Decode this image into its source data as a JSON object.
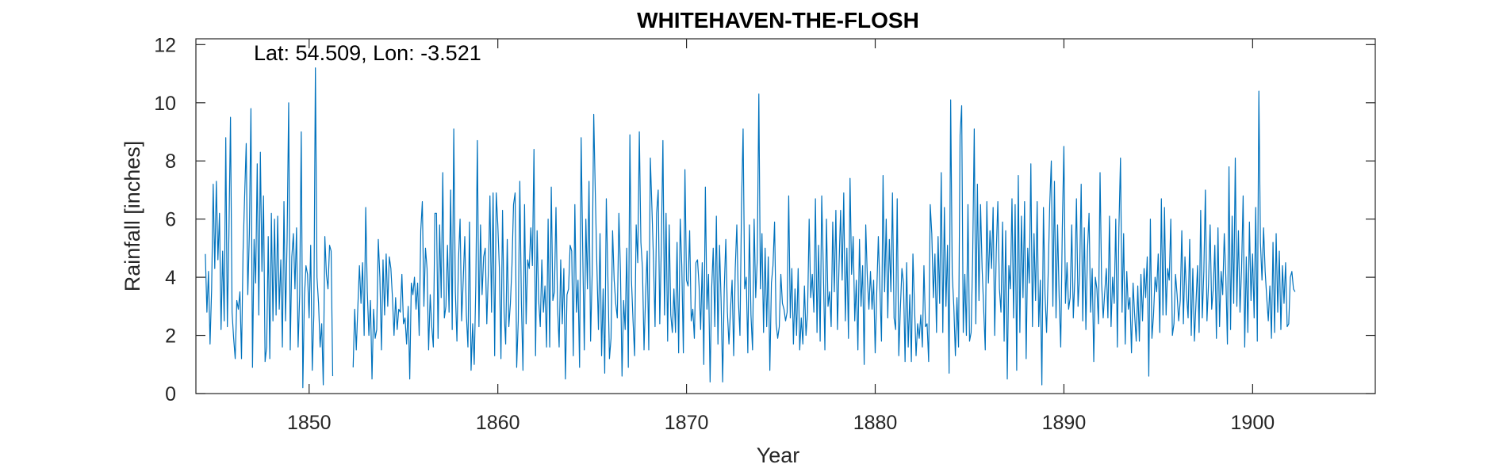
{
  "chart_data": {
    "type": "line",
    "title": "WHITEHAVEN-THE-FLOSH",
    "xlabel": "Year",
    "ylabel": "Rainfall [inches]",
    "annotation": "Lat: 54.509, Lon: -3.521",
    "xlim": [
      1844,
      1906.5
    ],
    "ylim": [
      0,
      12.2
    ],
    "xticks": [
      1850,
      1860,
      1870,
      1880,
      1890,
      1900
    ],
    "yticks": [
      0,
      2,
      4,
      6,
      8,
      10,
      12
    ],
    "grid": false,
    "line_color": "#0072BD",
    "series": [
      {
        "x_start": 1844.5,
        "step_years": 0.08333,
        "values": [
          4.8,
          2.8,
          4.2,
          1.7,
          3.6,
          7.2,
          4.3,
          7.3,
          4.6,
          6.2,
          2.2,
          4.9,
          2.5,
          8.8,
          2.3,
          5.5,
          9.5,
          2.8,
          1.9,
          1.2,
          3.2,
          2.9,
          3.5,
          1.2,
          4.9,
          6.8,
          8.6,
          3.4,
          5.5,
          9.8,
          0.9,
          5.3,
          3.8,
          7.9,
          2.7,
          8.3,
          4.2,
          6.8,
          1.1,
          1.6,
          5.4,
          1.2,
          6.2,
          2.5,
          6.0,
          2.7,
          6.1,
          2.9,
          4.6,
          1.6,
          6.6,
          2.5,
          5.3,
          10.0,
          1.5,
          4.7,
          5.5,
          3.6,
          5.7,
          1.6,
          3.4,
          9.0,
          0.2,
          3.3,
          4.4,
          4.1,
          2.6,
          5.1,
          0.8,
          2.7,
          11.2,
          4.0,
          3.1,
          1.6,
          2.4,
          0.3,
          5.4,
          4.1,
          3.6,
          5.1,
          4.9,
          0.6,
          null,
          null,
          null,
          null,
          null,
          null,
          null,
          null,
          null,
          null,
          null,
          null,
          0.9,
          2.9,
          1.5,
          3.0,
          4.4,
          3.1,
          4.5,
          2.0,
          6.4,
          3.5,
          2.0,
          3.2,
          0.5,
          2.9,
          1.9,
          2.2,
          5.3,
          4.0,
          1.5,
          4.6,
          2.7,
          4.8,
          3.0,
          4.7,
          4.3,
          3.3,
          2.0,
          3.3,
          2.2,
          2.9,
          2.8,
          4.1,
          2.4,
          2.6,
          1.7,
          3.0,
          0.5,
          3.8,
          3.4,
          4.0,
          2.9,
          3.8,
          2.0,
          5.6,
          6.6,
          3.0,
          5.0,
          4.3,
          1.5,
          3.4,
          2.3,
          1.6,
          6.2,
          6.2,
          1.9,
          5.8,
          3.3,
          7.6,
          2.6,
          3.0,
          5.1,
          2.8,
          7.0,
          2.2,
          9.1,
          3.5,
          1.8,
          4.6,
          6.0,
          2.5,
          3.9,
          5.4,
          2.7,
          1.6,
          5.9,
          0.8,
          2.4,
          1.0,
          3.7,
          8.7,
          2.3,
          5.8,
          3.4,
          4.7,
          5.0,
          2.4,
          4.2,
          6.8,
          2.8,
          6.9,
          1.3,
          6.9,
          5.8,
          4.3,
          1.2,
          6.3,
          2.8,
          1.7,
          5.3,
          2.3,
          3.1,
          4.4,
          6.5,
          6.9,
          0.9,
          2.5,
          7.3,
          3.1,
          0.8,
          6.5,
          2.4,
          4.6,
          4.3,
          5.7,
          4.4,
          8.4,
          1.3,
          5.6,
          3.2,
          2.3,
          4.6,
          2.8,
          3.7,
          1.6,
          6.0,
          1.6,
          7.1,
          3.2,
          3.5,
          6.4,
          3.0,
          1.6,
          4.6,
          2.4,
          4.3,
          0.5,
          3.4,
          3.6,
          5.1,
          4.9,
          1.3,
          6.5,
          2.8,
          3.9,
          0.9,
          8.8,
          4.9,
          1.5,
          6.0,
          3.6,
          7.3,
          1.8,
          4.1,
          9.6,
          6.9,
          4.4,
          2.2,
          5.5,
          1.3,
          3.6,
          0.7,
          6.7,
          4.0,
          1.2,
          1.9,
          5.6,
          3.9,
          3.1,
          2.6,
          6.2,
          4.2,
          0.6,
          3.2,
          2.2,
          5.0,
          0.9,
          8.9,
          3.9,
          2.5,
          1.3,
          5.8,
          4.5,
          9.0,
          5.2,
          4.3,
          1.5,
          3.4,
          4.9,
          1.5,
          8.1,
          6.4,
          4.6,
          2.3,
          6.2,
          7.0,
          2.4,
          5.1,
          8.7,
          2.7,
          6.2,
          1.8,
          5.8,
          2.7,
          2.1,
          3.6,
          2.1,
          5.2,
          1.4,
          6.0,
          4.4,
          1.4,
          7.7,
          3.9,
          3.7,
          5.6,
          2.5,
          2.9,
          1.9,
          4.5,
          4.6,
          3.7,
          2.2,
          4.5,
          1.0,
          7.1,
          2.9,
          4.1,
          0.4,
          3.6,
          5.0,
          2.3,
          6.1,
          1.7,
          5.1,
          3.2,
          0.4,
          3.6,
          5.3,
          2.8,
          1.7,
          2.9,
          3.9,
          1.3,
          4.3,
          5.8,
          3.2,
          2.0,
          6.5,
          9.1,
          3.6,
          4.0,
          1.4,
          5.8,
          2.7,
          1.5,
          6.0,
          3.3,
          4.6,
          10.3,
          3.6,
          5.5,
          2.1,
          5.0,
          2.3,
          4.7,
          0.8,
          3.8,
          4.4,
          5.9,
          2.4,
          1.9,
          2.3,
          4.1,
          3.1,
          2.9,
          2.5,
          2.8,
          6.8,
          2.6,
          4.3,
          1.7,
          3.6,
          2.0,
          4.3,
          1.5,
          2.6,
          1.7,
          3.7,
          2.0,
          2.8,
          6.0,
          3.3,
          4.1,
          2.8,
          6.7,
          2.1,
          5.1,
          1.8,
          6.8,
          4.3,
          1.5,
          6.0,
          3.0,
          3.5,
          2.3,
          5.9,
          3.5,
          6.3,
          2.2,
          4.4,
          6.3,
          3.9,
          6.9,
          2.5,
          5.0,
          1.9,
          7.4,
          4.1,
          5.4,
          2.5,
          3.9,
          1.5,
          5.3,
          3.0,
          4.4,
          1.0,
          5.8,
          4.0,
          2.9,
          4.2,
          2.9,
          3.9,
          1.4,
          3.5,
          5.4,
          3.6,
          1.8,
          7.5,
          3.5,
          6.0,
          2.6,
          5.3,
          3.5,
          6.9,
          2.6,
          2.2,
          6.7,
          1.3,
          2.9,
          4.3,
          3.8,
          1.1,
          4.5,
          1.6,
          3.4,
          1.1,
          4.8,
          3.0,
          1.3,
          2.4,
          1.9,
          2.7,
          1.6,
          4.4,
          2.3,
          2.4,
          1.1,
          6.5,
          5.5,
          3.3,
          4.8,
          2.1,
          5.4,
          3.1,
          7.6,
          2.1,
          6.4,
          3.0,
          5.1,
          0.7,
          10.1,
          4.1,
          3.0,
          1.3,
          3.3,
          1.6,
          8.9,
          9.9,
          2.1,
          4.1,
          2.0,
          6.5,
          1.8,
          2.1,
          4.7,
          9.1,
          2.4,
          7.2,
          3.2,
          6.5,
          4.3,
          2.9,
          1.5,
          6.6,
          3.8,
          5.6,
          4.3,
          6.4,
          2.0,
          4.9,
          6.6,
          3.6,
          2.8,
          5.9,
          1.8,
          5.6,
          0.5,
          4.4,
          3.6,
          6.7,
          2.6,
          6.5,
          0.8,
          7.5,
          2.1,
          6.1,
          3.3,
          6.6,
          1.2,
          5.0,
          3.8,
          7.9,
          2.3,
          5.5,
          3.2,
          6.6,
          2.3,
          3.9,
          0.3,
          6.4,
          3.4,
          2.1,
          4.1,
          6.5,
          8.0,
          3.0,
          7.3,
          2.6,
          5.8,
          3.3,
          1.6,
          5.7,
          8.5,
          3.1,
          4.5,
          2.9,
          3.3,
          5.8,
          2.6,
          4.0,
          6.7,
          3.0,
          4.1,
          7.2,
          2.5,
          5.7,
          2.2,
          4.9,
          6.2,
          2.8,
          4.3,
          1.1,
          4.0,
          3.6,
          2.4,
          7.6,
          3.8,
          2.6,
          3.5,
          4.3,
          2.6,
          6.1,
          2.3,
          4.0,
          3.1,
          6.0,
          1.6,
          5.7,
          8.1,
          2.8,
          5.5,
          1.7,
          4.2,
          2.9,
          3.3,
          1.4,
          3.8,
          2.7,
          1.8,
          3.7,
          1.8,
          4.1,
          2.5,
          4.3,
          3.3,
          4.7,
          0.6,
          6.0,
          1.9,
          2.7,
          4.0,
          3.5,
          4.8,
          2.1,
          6.7,
          2.7,
          6.4,
          2.7,
          4.3,
          3.9,
          6.0,
          2.0,
          2.4,
          4.1,
          3.4,
          2.5,
          3.2,
          5.6,
          2.4,
          4.7,
          3.4,
          2.6,
          5.3,
          2.0,
          4.3,
          1.8,
          3.1,
          4.4,
          2.1,
          6.3,
          2.6,
          4.2,
          7.0,
          2.5,
          3.8,
          5.8,
          2.9,
          3.6,
          5.1,
          1.9,
          5.7,
          2.3,
          4.2,
          3.4,
          5.5,
          4.0,
          1.7,
          7.8,
          2.2,
          6.1,
          3.1,
          8.1,
          3.0,
          5.6,
          2.8,
          4.3,
          6.8,
          1.6,
          4.7,
          2.1,
          5.9,
          3.2,
          4.8,
          2.6,
          6.4,
          1.8,
          10.4,
          5.2,
          3.9,
          5.7,
          4.2,
          3.3,
          2.5,
          3.7,
          1.9,
          5.2,
          2.1,
          5.5,
          2.8,
          4.9,
          2.2,
          4.4,
          3.1,
          4.5,
          2.3,
          2.4,
          4.0,
          4.2,
          3.6,
          3.5
        ]
      }
    ]
  }
}
